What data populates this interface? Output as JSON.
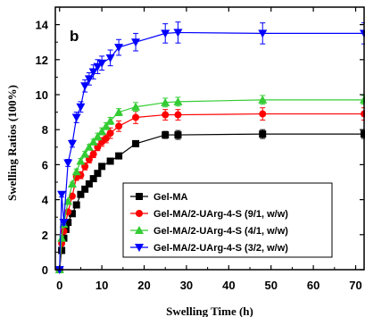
{
  "chart_data": {
    "type": "line",
    "panel_label": "b",
    "xlabel": "Swelling Time (h)",
    "ylabel": "Swelling Ratios (100%)",
    "xlim": [
      -1,
      72
    ],
    "ylim": [
      0,
      15
    ],
    "xticks": [
      "0",
      "10",
      "20",
      "30",
      "40",
      "50",
      "60",
      "70"
    ],
    "yticks": [
      "0",
      "2",
      "4",
      "6",
      "8",
      "10",
      "12",
      "14"
    ],
    "grid": false,
    "legend_position": "bottom-right",
    "series": [
      {
        "name": "Gel-MA",
        "color": "#000000",
        "marker": "square",
        "x": [
          0,
          0.5,
          1,
          1.5,
          2,
          3,
          4,
          5,
          6,
          7,
          8,
          9,
          10,
          12,
          14,
          18,
          25,
          28,
          48,
          72
        ],
        "y": [
          0,
          1.1,
          1.8,
          2.3,
          2.7,
          3.2,
          3.7,
          4.3,
          4.6,
          4.9,
          5.2,
          5.5,
          5.9,
          6.2,
          6.5,
          7.2,
          7.7,
          7.7,
          7.75,
          7.75
        ],
        "err": [
          0,
          0.1,
          0.1,
          0.1,
          0.1,
          0.1,
          0.1,
          0.1,
          0.1,
          0.1,
          0.1,
          0.1,
          0.1,
          0.1,
          0.1,
          0.1,
          0.2,
          0.25,
          0.25,
          0.25
        ]
      },
      {
        "name": "Gel-MA/2-UArg-4-S (9/1, w/w)",
        "color": "#ff0000",
        "marker": "circle",
        "x": [
          0,
          0.5,
          1,
          2,
          3,
          4,
          5,
          6,
          7,
          8,
          9,
          10,
          11,
          12,
          14,
          18,
          25,
          28,
          48,
          72
        ],
        "y": [
          0,
          1.5,
          2.2,
          3.3,
          4.2,
          5.3,
          5.4,
          5.9,
          6.3,
          6.6,
          7.0,
          7.3,
          7.5,
          7.8,
          8.2,
          8.7,
          8.85,
          8.85,
          8.9,
          8.9
        ],
        "err": [
          0,
          0.1,
          0.1,
          0.1,
          0.1,
          0.2,
          0.2,
          0.2,
          0.2,
          0.2,
          0.2,
          0.25,
          0.25,
          0.3,
          0.3,
          0.35,
          0.3,
          0.3,
          0.35,
          0.35
        ]
      },
      {
        "name": "Gel-MA/2-UArg-4-S (4/1, w/w)",
        "color": "#33cc33",
        "marker": "triangle-up",
        "x": [
          0,
          0.5,
          1,
          2,
          3,
          4,
          5,
          6,
          7,
          8,
          9,
          10,
          11,
          12,
          14,
          18,
          25,
          28,
          48,
          72
        ],
        "y": [
          0,
          1.8,
          2.6,
          3.9,
          4.9,
          5.6,
          6.2,
          6.6,
          7.0,
          7.3,
          7.6,
          7.9,
          8.2,
          8.5,
          9.0,
          9.3,
          9.55,
          9.6,
          9.7,
          9.7
        ],
        "err": [
          0,
          0.1,
          0.1,
          0.1,
          0.1,
          0.15,
          0.15,
          0.15,
          0.15,
          0.15,
          0.2,
          0.2,
          0.2,
          0.2,
          0.2,
          0.25,
          0.25,
          0.25,
          0.25,
          0.25
        ]
      },
      {
        "name": "Gel-MA/2-UArg-4-S (3/2, w/w)",
        "color": "#0000ff",
        "marker": "triangle-down",
        "x": [
          0,
          0.5,
          1,
          2,
          3,
          4,
          5,
          6,
          7,
          8,
          9,
          10,
          12,
          14,
          18,
          25,
          28,
          48,
          72
        ],
        "y": [
          0,
          4.3,
          2.7,
          6.1,
          7.2,
          8.7,
          9.3,
          10.5,
          10.9,
          11.3,
          11.6,
          11.8,
          12.1,
          12.7,
          13.0,
          13.5,
          13.55,
          13.5,
          13.5
        ],
        "err": [
          0,
          0.15,
          0.15,
          0.2,
          0.2,
          0.3,
          0.3,
          0.35,
          0.35,
          0.4,
          0.4,
          0.4,
          0.45,
          0.45,
          0.5,
          0.55,
          0.6,
          0.6,
          0.6
        ]
      }
    ]
  }
}
